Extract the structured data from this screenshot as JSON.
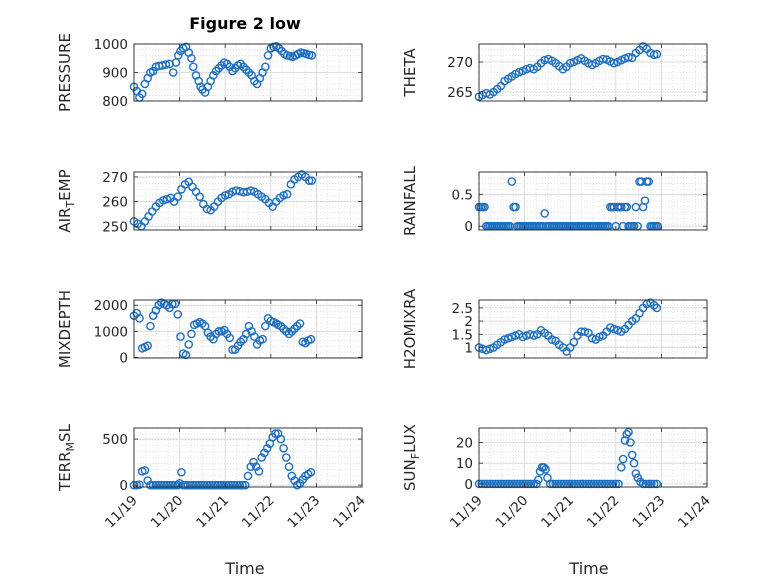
{
  "title": "Figure 2 low",
  "colors": {
    "marker": "#1f6fbf",
    "axes": "#262626",
    "grid": "#d6d6d6"
  },
  "chart_data": [
    {
      "id": "pressure",
      "type": "scatter",
      "ylabel": "PRESSURE",
      "ylim": [
        800,
        1000
      ],
      "yticks": [
        800,
        900,
        1000
      ],
      "xlim": [
        0,
        5
      ],
      "grid": "on",
      "title": "Figure 2 low",
      "x": [
        0.0,
        0.06,
        0.12,
        0.18,
        0.24,
        0.3,
        0.36,
        0.42,
        0.48,
        0.55,
        0.62,
        0.7,
        0.78,
        0.86,
        0.92,
        0.97,
        1.02,
        1.08,
        1.14,
        1.2,
        1.26,
        1.3,
        1.36,
        1.42,
        1.46,
        1.5,
        1.56,
        1.62,
        1.68,
        1.74,
        1.8,
        1.86,
        1.92,
        1.98,
        2.04,
        2.1,
        2.16,
        2.22,
        2.28,
        2.34,
        2.4,
        2.46,
        2.52,
        2.58,
        2.64,
        2.7,
        2.76,
        2.82,
        2.88,
        2.94,
        3.0,
        3.06,
        3.12,
        3.18,
        3.24,
        3.3,
        3.36,
        3.42,
        3.48,
        3.54,
        3.6,
        3.66,
        3.72,
        3.78,
        3.84,
        3.9
      ],
      "y": [
        850,
        835,
        812,
        825,
        860,
        880,
        900,
        905,
        920,
        923,
        925,
        928,
        930,
        900,
        935,
        960,
        975,
        985,
        990,
        970,
        950,
        920,
        890,
        870,
        850,
        840,
        830,
        850,
        870,
        890,
        905,
        915,
        925,
        935,
        930,
        920,
        905,
        915,
        925,
        930,
        920,
        910,
        900,
        890,
        870,
        860,
        880,
        900,
        920,
        960,
        985,
        990,
        992,
        985,
        975,
        965,
        960,
        958,
        955,
        960,
        965,
        970,
        968,
        965,
        962,
        960
      ]
    },
    {
      "id": "theta",
      "type": "scatter",
      "ylabel": "THETA",
      "ylim": [
        263.5,
        273
      ],
      "yticks": [
        265,
        270
      ],
      "xlim": [
        0,
        5
      ],
      "grid": "on",
      "x": [
        0.0,
        0.08,
        0.16,
        0.24,
        0.32,
        0.4,
        0.48,
        0.56,
        0.64,
        0.72,
        0.8,
        0.88,
        0.96,
        1.04,
        1.12,
        1.2,
        1.28,
        1.36,
        1.44,
        1.52,
        1.6,
        1.68,
        1.76,
        1.84,
        1.92,
        2.0,
        2.08,
        2.16,
        2.24,
        2.32,
        2.4,
        2.48,
        2.56,
        2.64,
        2.72,
        2.8,
        2.88,
        2.96,
        3.04,
        3.12,
        3.2,
        3.28,
        3.36,
        3.44,
        3.52,
        3.6,
        3.68,
        3.76,
        3.84,
        3.9
      ],
      "y": [
        264.2,
        264.5,
        264.8,
        264.6,
        265.0,
        265.5,
        266.0,
        266.8,
        267.2,
        267.6,
        268.0,
        268.3,
        268.5,
        268.8,
        269.0,
        268.8,
        269.2,
        269.8,
        270.3,
        270.5,
        270.2,
        269.8,
        269.3,
        268.8,
        269.2,
        269.8,
        270.0,
        270.3,
        270.6,
        270.2,
        269.8,
        269.5,
        269.8,
        270.2,
        270.5,
        270.4,
        270.1,
        269.8,
        270.0,
        270.3,
        270.6,
        270.8,
        270.7,
        271.5,
        272.0,
        272.6,
        272.2,
        271.5,
        271.2,
        271.3
      ]
    },
    {
      "id": "air_temp",
      "type": "scatter",
      "ylabel": "AIR_TEMP",
      "ylim": [
        248.5,
        272
      ],
      "yticks": [
        250,
        260,
        270
      ],
      "xlim": [
        0,
        5
      ],
      "grid": "on",
      "x": [
        0.0,
        0.08,
        0.16,
        0.24,
        0.32,
        0.4,
        0.48,
        0.56,
        0.64,
        0.72,
        0.8,
        0.88,
        0.96,
        1.04,
        1.12,
        1.2,
        1.28,
        1.36,
        1.44,
        1.52,
        1.6,
        1.68,
        1.76,
        1.84,
        1.92,
        2.0,
        2.08,
        2.16,
        2.24,
        2.32,
        2.4,
        2.48,
        2.56,
        2.64,
        2.72,
        2.8,
        2.88,
        2.96,
        3.04,
        3.12,
        3.2,
        3.28,
        3.36,
        3.44,
        3.52,
        3.6,
        3.68,
        3.76,
        3.84,
        3.9
      ],
      "y": [
        252,
        251,
        250,
        252,
        254,
        256,
        258,
        259.5,
        260.5,
        261,
        261.5,
        260,
        262,
        265,
        267,
        268,
        266,
        264,
        262,
        259,
        257,
        256.5,
        258,
        260,
        261.5,
        262.5,
        263,
        264,
        264.5,
        264.2,
        263.8,
        264,
        264.5,
        264,
        263,
        262,
        261,
        259.5,
        258,
        260,
        261.5,
        262.5,
        263,
        267,
        269,
        270,
        271,
        270,
        268.5,
        268.5
      ]
    },
    {
      "id": "rainfall",
      "type": "scatter",
      "ylabel": "RAINFALL",
      "ylim": [
        -0.06,
        0.85
      ],
      "yticks": [
        0,
        0.5
      ],
      "xlim": [
        0,
        5
      ],
      "grid": "on",
      "x": [
        0.0,
        0.04,
        0.08,
        0.12,
        0.16,
        0.2,
        0.24,
        0.28,
        0.32,
        0.36,
        0.4,
        0.44,
        0.48,
        0.52,
        0.56,
        0.6,
        0.64,
        0.68,
        0.72,
        0.76,
        0.8,
        0.84,
        0.88,
        0.92,
        0.96,
        1.0,
        1.04,
        1.08,
        1.12,
        1.16,
        1.2,
        1.24,
        1.28,
        1.32,
        1.36,
        1.4,
        1.44,
        1.48,
        1.52,
        1.56,
        1.6,
        1.64,
        1.68,
        1.72,
        1.76,
        1.8,
        1.84,
        1.88,
        1.92,
        1.96,
        2.0,
        2.04,
        2.08,
        2.12,
        2.16,
        2.2,
        2.24,
        2.28,
        2.32,
        2.36,
        2.4,
        2.44,
        2.48,
        2.52,
        2.56,
        2.6,
        2.64,
        2.68,
        2.72,
        2.76,
        2.8,
        2.84,
        2.88,
        2.92,
        2.96,
        3.0,
        3.04,
        3.08,
        3.12,
        3.16,
        3.2,
        3.24,
        3.28,
        3.32,
        3.36,
        3.4,
        3.44,
        3.48,
        3.52,
        3.56,
        3.6,
        3.64,
        3.68,
        3.72,
        3.76,
        3.8,
        3.84,
        3.88,
        3.92
      ],
      "y": [
        0.3,
        0.3,
        0.3,
        0.3,
        0.0,
        0.0,
        0.0,
        0.0,
        0.0,
        0.0,
        0.0,
        0.0,
        0.0,
        0.0,
        0.0,
        0.0,
        0.0,
        0.0,
        0.7,
        0.3,
        0.3,
        0.0,
        0.0,
        0.0,
        0.0,
        0.0,
        0.0,
        0.0,
        0.0,
        0.0,
        0.0,
        0.0,
        0.0,
        0.0,
        0.0,
        0.0,
        0.2,
        0.0,
        0.0,
        0.0,
        0.0,
        0.0,
        0.0,
        0.0,
        0.0,
        0.0,
        0.0,
        0.0,
        0.0,
        0.0,
        0.0,
        0.0,
        0.0,
        0.0,
        0.0,
        0.0,
        0.0,
        0.0,
        0.0,
        0.0,
        0.0,
        0.0,
        0.0,
        0.0,
        0.0,
        0.0,
        0.0,
        0.0,
        0.0,
        0.0,
        0.0,
        0.0,
        0.3,
        0.3,
        0.3,
        0.0,
        0.3,
        0.3,
        0.3,
        0.0,
        0.3,
        0.3,
        0.0,
        0.0,
        0.0,
        0.0,
        0.3,
        0.0,
        0.7,
        0.7,
        0.3,
        0.4,
        0.7,
        0.7,
        0.0,
        0.0,
        0.0,
        0.0,
        0.0
      ]
    },
    {
      "id": "mixdepth",
      "type": "scatter",
      "ylabel": "MIXDEPTH",
      "ylim": [
        -20,
        2200
      ],
      "yticks": [
        0,
        1000,
        2000
      ],
      "xlim": [
        0,
        5
      ],
      "grid": "on",
      "x": [
        0.0,
        0.06,
        0.12,
        0.18,
        0.24,
        0.3,
        0.36,
        0.42,
        0.48,
        0.54,
        0.6,
        0.66,
        0.72,
        0.78,
        0.84,
        0.9,
        0.96,
        1.02,
        1.08,
        1.14,
        1.2,
        1.26,
        1.32,
        1.38,
        1.44,
        1.5,
        1.56,
        1.62,
        1.68,
        1.74,
        1.8,
        1.86,
        1.92,
        1.98,
        2.04,
        2.1,
        2.16,
        2.22,
        2.28,
        2.34,
        2.4,
        2.46,
        2.52,
        2.58,
        2.64,
        2.7,
        2.76,
        2.82,
        2.88,
        2.94,
        3.0,
        3.06,
        3.12,
        3.16,
        3.22,
        3.28,
        3.34,
        3.4,
        3.46,
        3.52,
        3.58,
        3.64,
        3.7,
        3.76,
        3.82,
        3.88
      ],
      "y": [
        1600,
        1700,
        1500,
        350,
        400,
        450,
        1200,
        1600,
        1800,
        2000,
        2100,
        2050,
        2000,
        1900,
        2050,
        2050,
        1650,
        800,
        150,
        100,
        500,
        900,
        1250,
        1300,
        1350,
        1300,
        1200,
        950,
        800,
        700,
        900,
        1000,
        1000,
        1050,
        900,
        750,
        300,
        300,
        450,
        600,
        700,
        900,
        1200,
        1000,
        800,
        500,
        650,
        700,
        1200,
        1500,
        1400,
        1350,
        1300,
        1250,
        1200,
        1100,
        1000,
        900,
        1000,
        1100,
        1200,
        1300,
        600,
        550,
        650,
        700
      ]
    },
    {
      "id": "h2omixra",
      "type": "scatter",
      "ylabel": "H2OMIXRA",
      "ylim": [
        0.6,
        2.8
      ],
      "yticks": [
        1,
        1.5,
        2,
        2.5
      ],
      "xlim": [
        0,
        5
      ],
      "grid": "on",
      "x": [
        0.0,
        0.08,
        0.16,
        0.24,
        0.32,
        0.4,
        0.48,
        0.56,
        0.64,
        0.72,
        0.8,
        0.88,
        0.96,
        1.04,
        1.12,
        1.2,
        1.28,
        1.36,
        1.44,
        1.52,
        1.6,
        1.68,
        1.76,
        1.84,
        1.92,
        2.0,
        2.08,
        2.16,
        2.24,
        2.32,
        2.4,
        2.48,
        2.56,
        2.64,
        2.72,
        2.8,
        2.88,
        2.96,
        3.04,
        3.12,
        3.2,
        3.28,
        3.36,
        3.44,
        3.52,
        3.6,
        3.68,
        3.76,
        3.84,
        3.9
      ],
      "y": [
        1.0,
        0.95,
        0.9,
        0.95,
        1.0,
        1.1,
        1.2,
        1.3,
        1.35,
        1.4,
        1.45,
        1.5,
        1.4,
        1.45,
        1.5,
        1.45,
        1.5,
        1.65,
        1.55,
        1.45,
        1.3,
        1.25,
        1.1,
        1.0,
        0.85,
        1.0,
        1.2,
        1.45,
        1.6,
        1.6,
        1.55,
        1.35,
        1.3,
        1.4,
        1.45,
        1.6,
        1.75,
        1.7,
        1.65,
        1.6,
        1.7,
        1.85,
        2.0,
        2.1,
        2.3,
        2.5,
        2.65,
        2.7,
        2.6,
        2.5
      ]
    },
    {
      "id": "terr_msl",
      "type": "scatter",
      "ylabel": "TERR_MSL",
      "ylim": [
        -20,
        620
      ],
      "yticks": [
        0,
        500
      ],
      "xlim": [
        0,
        5
      ],
      "grid": "on",
      "x": [
        0.0,
        0.06,
        0.12,
        0.18,
        0.24,
        0.3,
        0.36,
        0.42,
        0.48,
        0.54,
        0.6,
        0.66,
        0.72,
        0.78,
        0.84,
        0.9,
        0.96,
        1.0,
        1.04,
        1.08,
        1.12,
        1.18,
        1.24,
        1.3,
        1.36,
        1.42,
        1.48,
        1.54,
        1.6,
        1.66,
        1.72,
        1.78,
        1.84,
        1.9,
        1.96,
        2.02,
        2.08,
        2.14,
        2.2,
        2.26,
        2.32,
        2.38,
        2.44,
        2.5,
        2.56,
        2.62,
        2.68,
        2.74,
        2.8,
        2.86,
        2.92,
        2.98,
        3.04,
        3.1,
        3.16,
        3.22,
        3.28,
        3.34,
        3.4,
        3.46,
        3.52,
        3.58,
        3.64,
        3.7,
        3.76,
        3.82,
        3.88
      ],
      "y": [
        0,
        0,
        5,
        150,
        160,
        50,
        0,
        0,
        0,
        0,
        0,
        0,
        0,
        0,
        0,
        0,
        0,
        20,
        140,
        0,
        0,
        0,
        0,
        0,
        0,
        0,
        0,
        0,
        0,
        0,
        0,
        0,
        0,
        0,
        0,
        0,
        0,
        0,
        0,
        0,
        0,
        0,
        0,
        100,
        200,
        250,
        200,
        150,
        300,
        350,
        400,
        450,
        520,
        560,
        560,
        500,
        400,
        300,
        200,
        100,
        50,
        0,
        20,
        60,
        100,
        120,
        140
      ]
    },
    {
      "id": "sun_flux",
      "type": "scatter",
      "ylabel": "SUN_FLUX",
      "ylim": [
        -1.5,
        27
      ],
      "yticks": [
        0,
        10,
        20
      ],
      "xlim": [
        0,
        5
      ],
      "grid": "on",
      "x": [
        0.0,
        0.06,
        0.12,
        0.18,
        0.24,
        0.3,
        0.36,
        0.42,
        0.48,
        0.54,
        0.6,
        0.66,
        0.72,
        0.78,
        0.84,
        0.9,
        0.96,
        1.02,
        1.08,
        1.14,
        1.2,
        1.26,
        1.3,
        1.34,
        1.38,
        1.42,
        1.46,
        1.5,
        1.56,
        1.62,
        1.68,
        1.74,
        1.8,
        1.86,
        1.92,
        1.98,
        2.04,
        2.1,
        2.16,
        2.22,
        2.28,
        2.34,
        2.4,
        2.46,
        2.52,
        2.58,
        2.64,
        2.7,
        2.76,
        2.82,
        2.88,
        2.94,
        3.0,
        3.06,
        3.12,
        3.16,
        3.2,
        3.24,
        3.28,
        3.32,
        3.36,
        3.4,
        3.44,
        3.48,
        3.54,
        3.6,
        3.66,
        3.72,
        3.78,
        3.84,
        3.9
      ],
      "y": [
        0,
        0,
        0,
        0,
        0,
        0,
        0,
        0,
        0,
        0,
        0,
        0,
        0,
        0,
        0,
        0,
        0,
        0,
        0,
        0,
        0,
        0,
        2,
        6,
        8,
        8,
        7,
        3,
        0,
        0,
        0,
        0,
        0,
        0,
        0,
        0,
        0,
        0,
        0,
        0,
        0,
        0,
        0,
        0,
        0,
        0,
        0,
        0,
        0,
        0,
        0,
        0,
        0,
        0,
        8,
        12,
        21,
        24,
        25,
        20,
        14,
        10,
        5,
        3,
        1,
        0,
        0,
        0,
        0,
        0,
        0
      ]
    }
  ],
  "x_ticklabels": [
    "11/19",
    "11/20",
    "11/21",
    "11/22",
    "11/23",
    "11/24"
  ],
  "x_label": "Time"
}
